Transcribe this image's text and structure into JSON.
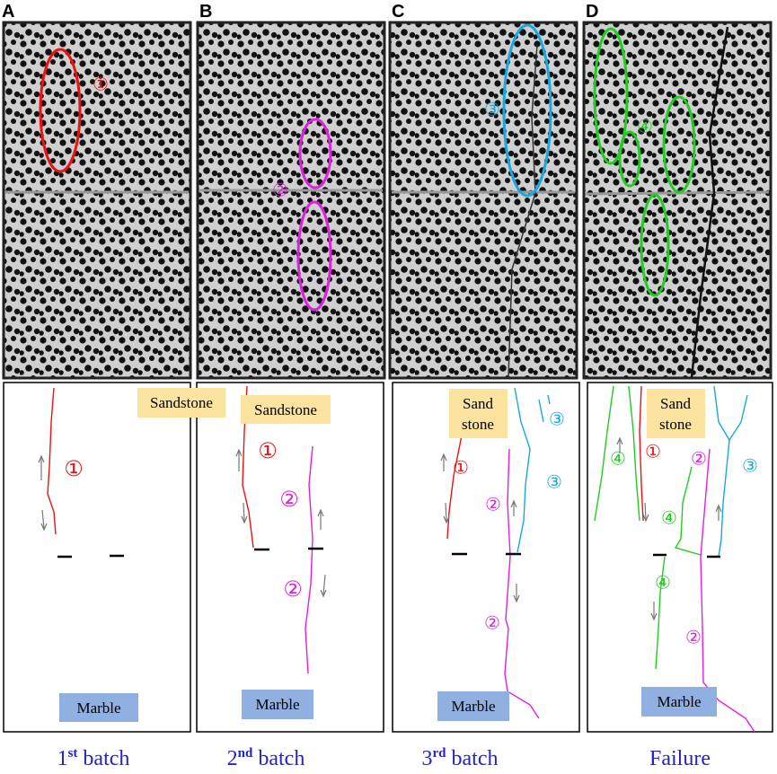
{
  "panels": [
    {
      "letter": "A",
      "photo_labels": [
        "①"
      ],
      "sketch": {
        "rock_top": [
          "Sandstone"
        ],
        "rock_bottom": "Marble",
        "labels": [
          "①"
        ]
      },
      "caption": {
        "number": "1",
        "suffix": "st",
        "text": "batch"
      }
    },
    {
      "letter": "B",
      "photo_labels": [
        "②"
      ],
      "sketch": {
        "rock_top": [
          "Sandstone"
        ],
        "rock_bottom": "Marble",
        "labels": [
          "①",
          "②",
          "②"
        ]
      },
      "caption": {
        "number": "2",
        "suffix": "nd",
        "text": "batch"
      }
    },
    {
      "letter": "C",
      "photo_labels": [
        "③"
      ],
      "sketch": {
        "rock_top": [
          "Sand",
          "stone"
        ],
        "rock_bottom": "Marble",
        "labels": [
          "③",
          "①",
          "③",
          "②",
          "②"
        ]
      },
      "caption": {
        "number": "3",
        "suffix": "rd",
        "text": "batch"
      }
    },
    {
      "letter": "D",
      "photo_labels": [
        "④"
      ],
      "sketch": {
        "rock_top": [
          "Sand",
          "stone"
        ],
        "rock_bottom": "Marble",
        "labels": [
          "④",
          "①",
          "②",
          "③",
          "④",
          "④",
          "②"
        ]
      },
      "caption": {
        "text": "Failure"
      }
    }
  ]
}
